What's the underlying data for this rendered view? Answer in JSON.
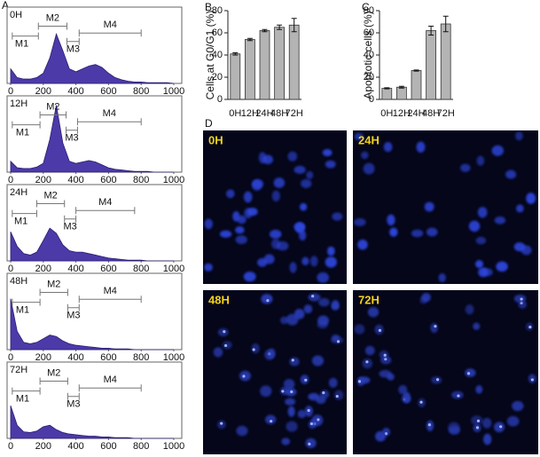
{
  "panel_labels": [
    "A",
    "B",
    "C",
    "D"
  ],
  "chart_data": [
    {
      "type": "area",
      "title": "0H",
      "color": "#4b3aa8",
      "x": [
        0,
        40,
        80,
        120,
        160,
        200,
        240,
        280,
        320,
        360,
        400,
        440,
        480,
        520,
        560,
        600,
        640,
        680,
        720,
        760,
        800,
        840,
        880,
        920,
        960,
        1000
      ],
      "values": [
        20,
        8,
        6,
        6,
        8,
        14,
        35,
        68,
        45,
        20,
        16,
        20,
        24,
        26,
        22,
        14,
        8,
        5,
        3,
        2,
        2,
        1,
        1,
        1,
        1,
        0
      ],
      "xlim": [
        0,
        1000
      ],
      "xticks": [
        0,
        200,
        400,
        600,
        800,
        1000
      ],
      "ylim": [
        0,
        100
      ],
      "markers": [
        {
          "label": "M1",
          "range": [
            10,
            170
          ]
        },
        {
          "label": "M2",
          "range": [
            170,
            345
          ]
        },
        {
          "label": "M3",
          "range": [
            345,
            420
          ]
        },
        {
          "label": "M4",
          "range": [
            420,
            800
          ]
        }
      ]
    },
    {
      "type": "area",
      "title": "12H",
      "color": "#4b3aa8",
      "x": [
        0,
        40,
        80,
        120,
        160,
        200,
        240,
        280,
        320,
        360,
        400,
        440,
        480,
        520,
        560,
        600,
        640,
        680,
        720,
        760,
        800,
        840,
        880,
        920,
        960,
        1000
      ],
      "values": [
        15,
        6,
        5,
        5,
        7,
        12,
        45,
        92,
        40,
        15,
        12,
        14,
        16,
        14,
        10,
        6,
        4,
        3,
        2,
        1,
        1,
        1,
        0,
        0,
        0,
        0
      ],
      "xlim": [
        0,
        1000
      ],
      "xticks": [
        0,
        200,
        400,
        600,
        800,
        1000
      ],
      "ylim": [
        0,
        100
      ],
      "markers": [
        {
          "label": "M1",
          "range": [
            10,
            180
          ]
        },
        {
          "label": "M2",
          "range": [
            180,
            340
          ]
        },
        {
          "label": "M3",
          "range": [
            340,
            410
          ]
        },
        {
          "label": "M4",
          "range": [
            410,
            800
          ]
        }
      ]
    },
    {
      "type": "area",
      "title": "24H",
      "color": "#4b3aa8",
      "x": [
        0,
        40,
        80,
        120,
        160,
        200,
        240,
        280,
        320,
        360,
        400,
        440,
        480,
        520,
        560,
        600,
        640,
        680,
        720,
        760,
        800,
        840,
        880,
        920,
        960,
        1000
      ],
      "values": [
        40,
        20,
        10,
        8,
        12,
        28,
        45,
        38,
        22,
        14,
        12,
        12,
        10,
        8,
        6,
        4,
        3,
        2,
        1,
        1,
        1,
        0,
        0,
        0,
        0,
        0
      ],
      "xlim": [
        0,
        1000
      ],
      "xticks": [
        0,
        200,
        400,
        600,
        800,
        1000
      ],
      "ylim": [
        0,
        100
      ],
      "markers": [
        {
          "label": "M1",
          "range": [
            10,
            160
          ]
        },
        {
          "label": "M2",
          "range": [
            160,
            330
          ]
        },
        {
          "label": "M3",
          "range": [
            330,
            400
          ]
        },
        {
          "label": "M4",
          "range": [
            400,
            760
          ]
        }
      ]
    },
    {
      "type": "area",
      "title": "48H",
      "color": "#4b3aa8",
      "x": [
        0,
        40,
        80,
        120,
        160,
        200,
        240,
        280,
        320,
        360,
        400,
        440,
        480,
        520,
        560,
        600,
        640,
        680,
        720,
        760,
        800,
        840,
        880,
        920,
        960,
        1000
      ],
      "values": [
        70,
        25,
        10,
        8,
        10,
        15,
        20,
        18,
        12,
        8,
        6,
        5,
        4,
        3,
        2,
        2,
        1,
        1,
        1,
        0,
        0,
        0,
        0,
        0,
        0,
        0
      ],
      "xlim": [
        0,
        1000
      ],
      "xticks": [
        0,
        200,
        400,
        600,
        800,
        1000
      ],
      "ylim": [
        0,
        100
      ],
      "markers": [
        {
          "label": "M1",
          "range": [
            10,
            180
          ]
        },
        {
          "label": "M2",
          "range": [
            180,
            350
          ]
        },
        {
          "label": "M3",
          "range": [
            350,
            420
          ]
        },
        {
          "label": "M4",
          "range": [
            420,
            800
          ]
        }
      ]
    },
    {
      "type": "area",
      "title": "72H",
      "color": "#4b3aa8",
      "x": [
        0,
        40,
        80,
        120,
        160,
        200,
        240,
        280,
        320,
        360,
        400,
        440,
        480,
        520,
        560,
        600,
        640,
        680,
        720,
        760,
        800,
        840,
        880,
        920,
        960,
        1000
      ],
      "values": [
        45,
        18,
        9,
        8,
        10,
        16,
        18,
        12,
        8,
        6,
        5,
        4,
        3,
        3,
        2,
        2,
        1,
        1,
        1,
        0,
        0,
        0,
        0,
        0,
        0,
        0
      ],
      "xlim": [
        0,
        1000
      ],
      "xticks": [
        0,
        200,
        400,
        600,
        800,
        1000
      ],
      "ylim": [
        0,
        100
      ],
      "markers": [
        {
          "label": "M1",
          "range": [
            10,
            180
          ]
        },
        {
          "label": "M2",
          "range": [
            180,
            350
          ]
        },
        {
          "label": "M3",
          "range": [
            350,
            420
          ]
        },
        {
          "label": "M4",
          "range": [
            420,
            800
          ]
        }
      ]
    },
    {
      "type": "bar",
      "ylabel": "Cells at G0/G1 (%)",
      "color": "#b4b4b4",
      "categories": [
        "0H",
        "12H",
        "24H",
        "48H",
        "72H"
      ],
      "values": [
        41,
        54,
        62,
        65,
        67
      ],
      "errors": [
        1,
        1,
        1,
        2,
        6
      ],
      "ylim": [
        0,
        80
      ],
      "yticks": [
        0,
        20,
        40,
        60,
        80
      ]
    },
    {
      "type": "bar",
      "ylabel": "Apoptotic cells (%)",
      "color": "#b4b4b4",
      "categories": [
        "0H",
        "12H",
        "24H",
        "48H",
        "72H"
      ],
      "values": [
        10,
        11,
        26,
        62,
        68
      ],
      "errors": [
        0.5,
        0.8,
        0.5,
        4,
        7
      ],
      "ylim": [
        0,
        80
      ],
      "yticks": [
        0,
        20,
        40,
        60,
        80
      ]
    }
  ],
  "images": [
    {
      "label": "0H"
    },
    {
      "label": "24H"
    },
    {
      "label": "48H"
    },
    {
      "label": "72H"
    }
  ]
}
